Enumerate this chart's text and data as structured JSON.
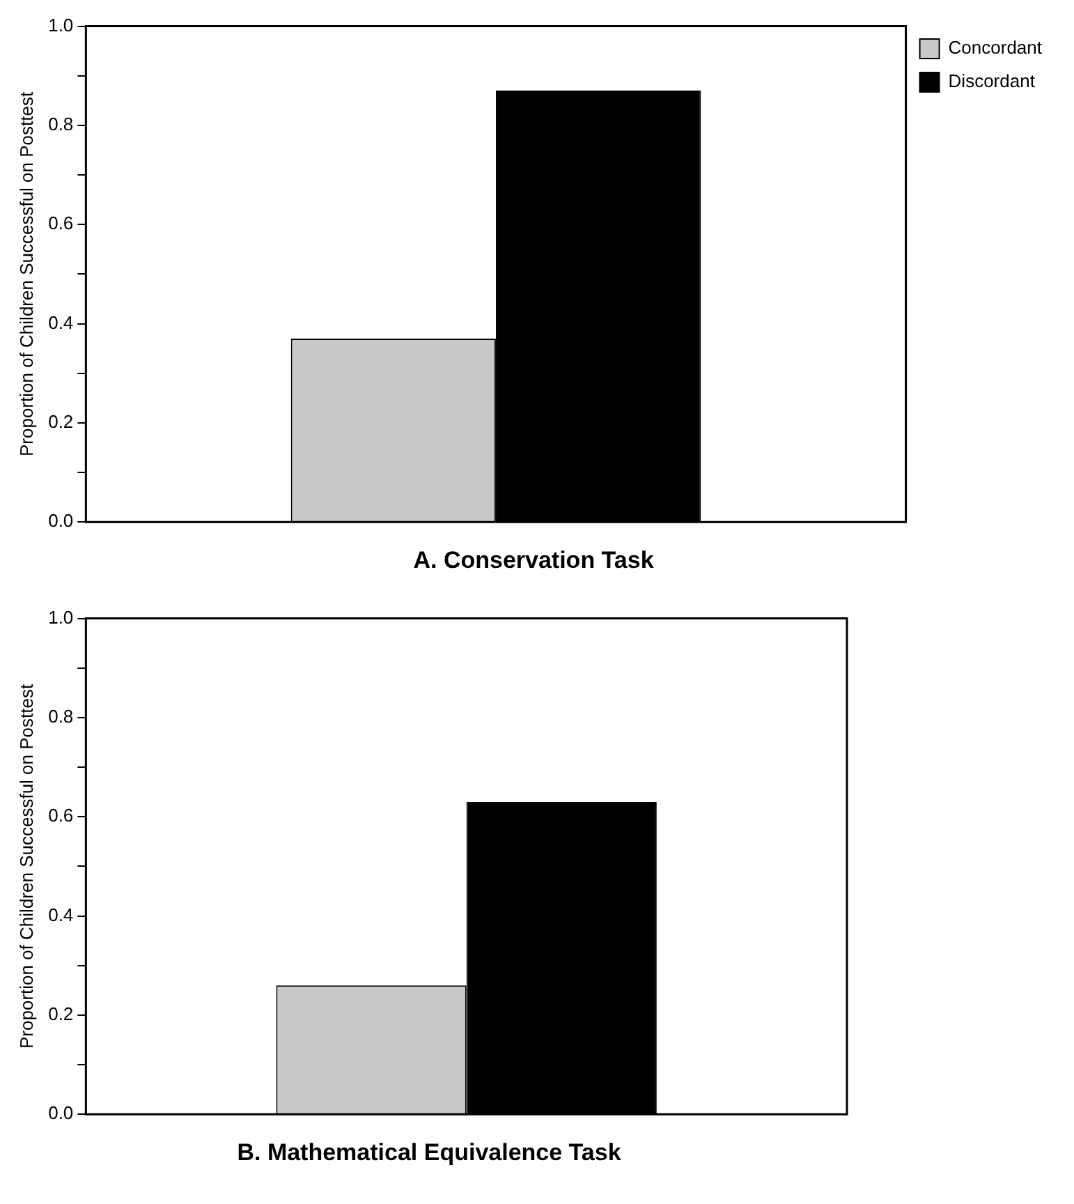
{
  "chart_data": [
    {
      "type": "bar",
      "title": "A. Conservation Task",
      "ylabel": "Proportion of Children Successful on Posttest",
      "categories": [
        null
      ],
      "series": [
        {
          "name": "Concordant",
          "color": "#c8c8c8",
          "values": [
            0.37
          ]
        },
        {
          "name": "Discordant",
          "color": "#000000",
          "values": [
            0.87
          ]
        }
      ],
      "ylim": [
        0,
        1
      ],
      "yticks": [
        {
          "value": 0,
          "label": "0.0"
        },
        {
          "value": 0.1,
          "label": null
        },
        0.2,
        {
          "value": 0.3,
          "label": null
        },
        0.4,
        {
          "value": 0.5,
          "label": null
        },
        0.6,
        {
          "value": 0.7,
          "label": null
        },
        0.8,
        {
          "value": 0.9,
          "label": null
        },
        {
          "value": 1,
          "label": "1.0"
        }
      ],
      "grid": false,
      "legend": "top right"
    },
    {
      "type": "bar",
      "title": "B. Mathematical Equivalence Task",
      "ylabel": "Proportion of Children Successful on Posttest",
      "categories": [
        null
      ],
      "series": [
        {
          "color": "#c8c8c8",
          "values": [
            0.26
          ]
        },
        {
          "color": "#000000",
          "values": [
            0.63
          ]
        }
      ],
      "ylim": [
        0,
        1
      ],
      "yticks": [
        {
          "value": 0,
          "label": "0.0"
        },
        {
          "value": 0.1,
          "label": null
        },
        0.2,
        {
          "value": 0.3,
          "label": null
        },
        0.4,
        {
          "value": 0.5,
          "label": null
        },
        0.6,
        {
          "value": 0.7,
          "label": null
        },
        0.8,
        {
          "value": 0.9,
          "label": null
        },
        {
          "value": 1,
          "label": "1.0"
        }
      ],
      "grid": false,
      "legend": false
    }
  ]
}
